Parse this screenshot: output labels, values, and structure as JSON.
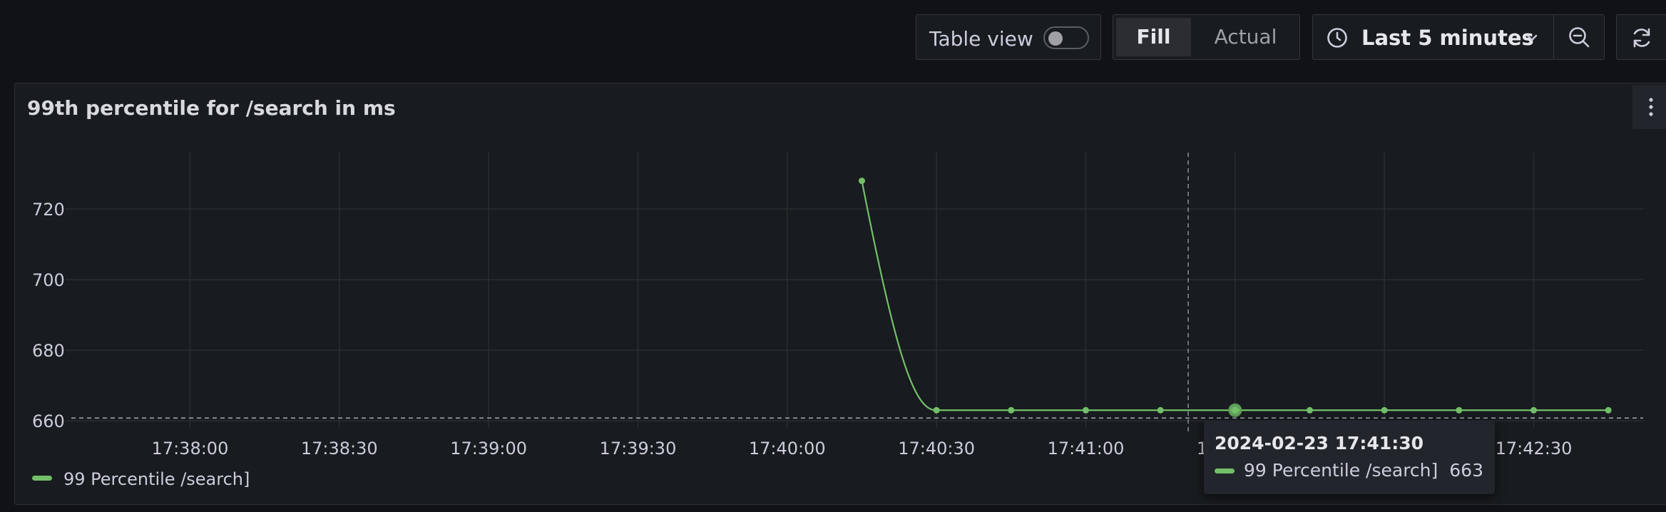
{
  "toolbar": {
    "table_view_label": "Table view",
    "fill_label": "Fill",
    "actual_label": "Actual",
    "time_range": "Last 5 minutes"
  },
  "panel": {
    "title": "99th percentile for /search in ms"
  },
  "chart_data": {
    "type": "line",
    "title": "99th percentile for /search in ms",
    "xlabel": "",
    "ylabel": "",
    "x_ticks": [
      "17:38:00",
      "17:38:30",
      "17:39:00",
      "17:39:30",
      "17:40:00",
      "17:40:30",
      "17:41:00",
      "17:41:30",
      "17:42:00",
      "17:42:30"
    ],
    "y_ticks": [
      660,
      680,
      700,
      720
    ],
    "ylim": [
      658,
      736
    ],
    "grid": true,
    "legend_position": "bottom-left",
    "series": [
      {
        "name": "99 Percentile /search]",
        "color": "#73bf69",
        "x": [
          "17:40:15",
          "17:40:30",
          "17:40:45",
          "17:41:00",
          "17:41:15",
          "17:41:30",
          "17:41:45",
          "17:42:00",
          "17:42:15",
          "17:42:30",
          "17:42:45"
        ],
        "values": [
          728,
          663,
          663,
          663,
          663,
          663,
          663,
          663,
          663,
          663,
          663
        ]
      }
    ],
    "threshold_line": 662,
    "hover": {
      "x": "17:41:30",
      "time": "2024-02-23 17:41:30",
      "series_name": "99 Percentile /search]",
      "value": "663"
    }
  }
}
